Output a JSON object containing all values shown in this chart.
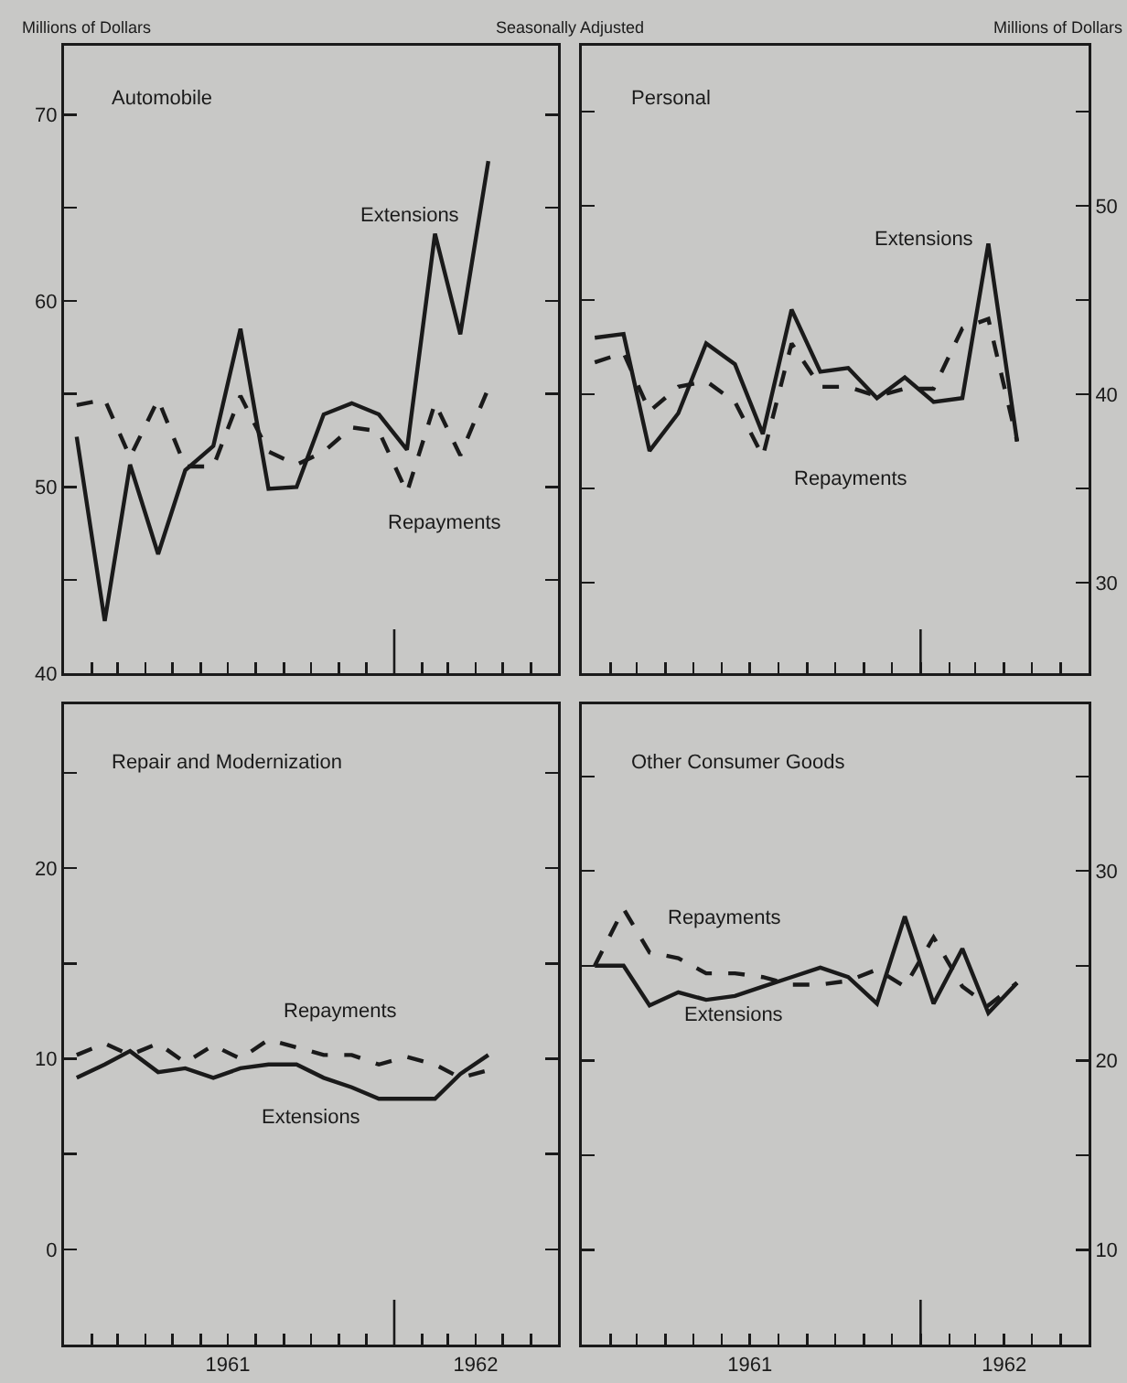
{
  "chart_data": [
    {
      "type": "line",
      "title": "Automobile",
      "ylabel": "Millions of Dollars",
      "x": [
        "1961-01-15",
        "1961-02-15",
        "1961-03-15",
        "1961-04-15",
        "1961-05-15",
        "1961-06-15",
        "1961-07-15",
        "1961-08-15",
        "1961-09-15",
        "1961-10-15",
        "1961-11-15",
        "1961-12-15",
        "1962-01-15",
        "1962-02-15",
        "1962-03-15",
        "1962-04-15"
      ],
      "xlim": [
        "1961-01-01",
        "1962-07-01"
      ],
      "xticks": [
        {
          "value": "1961-02",
          "label": null
        },
        {
          "value": "1961-03",
          "label": null
        },
        {
          "value": "1961-04",
          "label": null
        },
        {
          "value": "1961-05",
          "label": null
        },
        {
          "value": "1961-06",
          "label": null
        },
        {
          "value": "1961-07",
          "label": null
        },
        {
          "value": "1961-08",
          "label": null
        },
        {
          "value": "1961-09",
          "label": null
        },
        {
          "value": "1961-10",
          "label": null
        },
        {
          "value": "1961-11",
          "label": null
        },
        {
          "value": "1961-12",
          "label": null
        },
        {
          "value": "1962-01",
          "label": null
        },
        {
          "value": "1962-02",
          "label": null
        },
        {
          "value": "1962-03",
          "label": null
        },
        {
          "value": "1962-04",
          "label": null
        },
        {
          "value": "1962-05",
          "label": null
        },
        {
          "value": "1962-06",
          "label": null
        }
      ],
      "ylim": [
        40,
        73.7
      ],
      "yticks": [
        40,
        {
          "value": 45,
          "label": null
        },
        50,
        {
          "value": 55,
          "label": null
        },
        60,
        {
          "value": 65,
          "label": null
        },
        70
      ],
      "tick_labels": "y",
      "grid": false,
      "legend": false,
      "marker": "none",
      "series": [
        {
          "name": "Extensions",
          "color": "#1a1a1a",
          "line_style": "solid",
          "values": [
            52.7,
            42.8,
            51.2,
            46.4,
            50.9,
            52.2,
            58.5,
            49.9,
            50.0,
            53.9,
            54.5,
            53.9,
            52.0,
            63.6,
            58.2,
            67.5
          ]
        },
        {
          "name": "Repayments",
          "color": "#1a1a1a",
          "line_style": "dashed",
          "values": [
            54.4,
            54.7,
            51.6,
            54.7,
            51.1,
            51.1,
            54.9,
            51.9,
            51.2,
            51.9,
            53.2,
            53.0,
            49.7,
            54.5,
            51.7,
            55.3
          ]
        }
      ]
    },
    {
      "type": "line",
      "title": "Personal",
      "ylabel": "Millions of Dollars",
      "annotations": [
        "Seasonally Adjusted"
      ],
      "x": [
        "1961-01-15",
        "1961-02-15",
        "1961-03-15",
        "1961-04-15",
        "1961-05-15",
        "1961-06-15",
        "1961-07-15",
        "1961-08-15",
        "1961-09-15",
        "1961-10-15",
        "1961-11-15",
        "1961-12-15",
        "1962-01-15",
        "1962-02-15",
        "1962-03-15",
        "1962-04-15"
      ],
      "xlim": [
        "1961-01-01",
        "1962-07-01"
      ],
      "xticks": [
        {
          "value": "1961-02",
          "label": null
        },
        {
          "value": "1961-03",
          "label": null
        },
        {
          "value": "1961-04",
          "label": null
        },
        {
          "value": "1961-05",
          "label": null
        },
        {
          "value": "1961-06",
          "label": null
        },
        {
          "value": "1961-07",
          "label": null
        },
        {
          "value": "1961-08",
          "label": null
        },
        {
          "value": "1961-09",
          "label": null
        },
        {
          "value": "1961-10",
          "label": null
        },
        {
          "value": "1961-11",
          "label": null
        },
        {
          "value": "1961-12",
          "label": null
        },
        {
          "value": "1962-01",
          "label": null
        },
        {
          "value": "1962-02",
          "label": null
        },
        {
          "value": "1962-03",
          "label": null
        },
        {
          "value": "1962-04",
          "label": null
        },
        {
          "value": "1962-05",
          "label": null
        },
        {
          "value": "1962-06",
          "label": null
        }
      ],
      "ylim": [
        25.2,
        58.5
      ],
      "yticks": [
        30,
        {
          "value": 35,
          "label": null
        },
        40,
        {
          "value": 45,
          "label": null
        },
        50,
        {
          "value": 55,
          "label": null
        }
      ],
      "tick_labels": "y",
      "grid": false,
      "legend": false,
      "marker": "none",
      "series": [
        {
          "name": "Extensions",
          "color": "#1a1a1a",
          "line_style": "solid",
          "values": [
            43.0,
            43.2,
            37.0,
            39.0,
            42.7,
            41.6,
            37.9,
            44.5,
            41.2,
            41.4,
            39.8,
            40.9,
            39.6,
            39.8,
            48.0,
            37.5
          ]
        },
        {
          "name": "Repayments",
          "color": "#1a1a1a",
          "line_style": "dashed",
          "values": [
            41.7,
            42.2,
            39.1,
            40.4,
            40.7,
            39.6,
            36.7,
            42.7,
            40.4,
            40.4,
            39.9,
            40.3,
            40.3,
            43.5,
            44.0,
            37.5
          ]
        }
      ]
    },
    {
      "type": "line",
      "title": "Repair and Modernization",
      "x": [
        "1961-01-15",
        "1961-02-15",
        "1961-03-15",
        "1961-04-15",
        "1961-05-15",
        "1961-06-15",
        "1961-07-15",
        "1961-08-15",
        "1961-09-15",
        "1961-10-15",
        "1961-11-15",
        "1961-12-15",
        "1962-01-15",
        "1962-02-15",
        "1962-03-15",
        "1962-04-15"
      ],
      "xlim": [
        "1961-01-01",
        "1962-07-01"
      ],
      "xticks": [
        {
          "value": "1961-02",
          "label": null
        },
        {
          "value": "1961-03",
          "label": null
        },
        {
          "value": "1961-04",
          "label": null
        },
        {
          "value": "1961-05",
          "label": null
        },
        {
          "value": "1961-06",
          "label": null
        },
        {
          "value": "1961-07",
          "label": "1961"
        },
        {
          "value": "1961-08",
          "label": null
        },
        {
          "value": "1961-09",
          "label": null
        },
        {
          "value": "1961-10",
          "label": null
        },
        {
          "value": "1961-11",
          "label": null
        },
        {
          "value": "1961-12",
          "label": null
        },
        {
          "value": "1962-01",
          "label": null
        },
        {
          "value": "1962-02",
          "label": null
        },
        {
          "value": "1962-03",
          "label": null
        },
        {
          "value": "1962-04",
          "label": "1962"
        },
        {
          "value": "1962-05",
          "label": null
        },
        {
          "value": "1962-06",
          "label": null
        }
      ],
      "ylim": [
        -5,
        28.6
      ],
      "yticks": [
        0,
        {
          "value": 5,
          "label": null
        },
        10,
        {
          "value": 15,
          "label": null
        },
        20,
        {
          "value": 25,
          "label": null
        }
      ],
      "grid": false,
      "legend": false,
      "marker": "none",
      "series": [
        {
          "name": "Extensions",
          "color": "#1a1a1a",
          "line_style": "solid",
          "values": [
            9.0,
            9.7,
            10.4,
            9.3,
            9.5,
            9.0,
            9.5,
            9.7,
            9.7,
            9.0,
            8.5,
            7.9,
            7.9,
            7.9,
            9.2,
            10.2
          ]
        },
        {
          "name": "Repayments",
          "color": "#1a1a1a",
          "line_style": "dashed",
          "values": [
            10.2,
            10.8,
            10.2,
            10.8,
            9.8,
            10.7,
            10.0,
            11.0,
            10.6,
            10.2,
            10.2,
            9.7,
            10.1,
            9.7,
            9.0,
            9.4
          ]
        }
      ]
    },
    {
      "type": "line",
      "title": "Other Consumer Goods",
      "x": [
        "1961-01-15",
        "1961-02-15",
        "1961-03-15",
        "1961-04-15",
        "1961-05-15",
        "1961-06-15",
        "1961-07-15",
        "1961-08-15",
        "1961-09-15",
        "1961-10-15",
        "1961-11-15",
        "1961-12-15",
        "1962-01-15",
        "1962-02-15",
        "1962-03-15",
        "1962-04-15"
      ],
      "xlim": [
        "1961-01-01",
        "1962-07-01"
      ],
      "xticks": [
        {
          "value": "1961-02",
          "label": null
        },
        {
          "value": "1961-03",
          "label": null
        },
        {
          "value": "1961-04",
          "label": null
        },
        {
          "value": "1961-05",
          "label": null
        },
        {
          "value": "1961-06",
          "label": null
        },
        {
          "value": "1961-07",
          "label": "1961"
        },
        {
          "value": "1961-08",
          "label": null
        },
        {
          "value": "1961-09",
          "label": null
        },
        {
          "value": "1961-10",
          "label": null
        },
        {
          "value": "1961-11",
          "label": null
        },
        {
          "value": "1961-12",
          "label": null
        },
        {
          "value": "1962-01",
          "label": null
        },
        {
          "value": "1962-02",
          "label": null
        },
        {
          "value": "1962-03",
          "label": null
        },
        {
          "value": "1962-04",
          "label": "1962"
        },
        {
          "value": "1962-05",
          "label": null
        },
        {
          "value": "1962-06",
          "label": null
        }
      ],
      "ylim": [
        5,
        38.8
      ],
      "yticks": [
        10,
        {
          "value": 15,
          "label": null
        },
        20,
        {
          "value": 25,
          "label": null
        },
        30,
        {
          "value": 35,
          "label": null
        }
      ],
      "grid": false,
      "legend": false,
      "marker": "none",
      "series": [
        {
          "name": "Extensions",
          "color": "#1a1a1a",
          "line_style": "solid",
          "values": [
            25.0,
            25.0,
            22.9,
            23.6,
            23.2,
            23.4,
            23.9,
            24.4,
            24.9,
            24.4,
            23.0,
            27.6,
            23.0,
            25.9,
            22.5,
            24.1
          ]
        },
        {
          "name": "Repayments",
          "color": "#1a1a1a",
          "line_style": "dashed",
          "values": [
            25.0,
            28.0,
            25.7,
            25.4,
            24.6,
            24.6,
            24.4,
            24.0,
            24.0,
            24.2,
            24.8,
            23.9,
            26.5,
            23.9,
            22.9,
            24.1
          ]
        }
      ]
    }
  ]
}
